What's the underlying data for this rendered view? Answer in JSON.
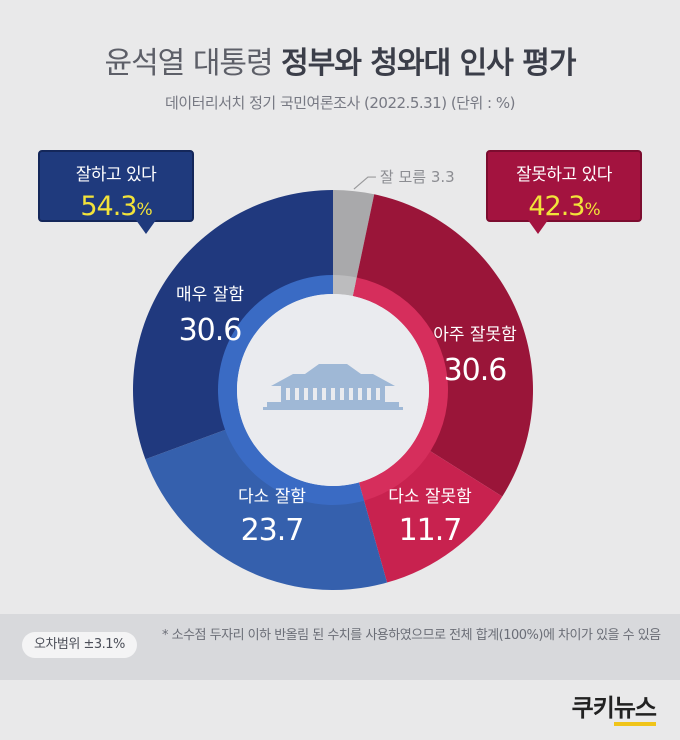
{
  "title": {
    "light": "윤석열 대통령 ",
    "bold": "정부와 청와대 인사 평가"
  },
  "subtitle": "데이터리서치 정기 국민여론조사 (2022.5.31)  (단위 : %)",
  "callouts": {
    "good": {
      "label": "잘하고 있다",
      "value": "54.3",
      "unit": "%"
    },
    "bad": {
      "label": "잘못하고 있다",
      "value": "42.3",
      "unit": "%"
    }
  },
  "footer": {
    "margin": "오차범위 ±3.1%",
    "note": "* 소수점 두자리 이하 반올림 된 수치를 사용하였으므로 전체 합계(100%)에 차이가 있을 수 있음"
  },
  "brand": {
    "part1": "쿠키",
    "part2": "뉴스"
  },
  "chart_data": {
    "type": "pie",
    "variant": "donut",
    "slices": [
      {
        "label": "잘 모름",
        "value": 3.3,
        "display": "3.3",
        "color": "#a9a9ab"
      },
      {
        "label": "아주 잘못함",
        "value": 30.6,
        "display": "30.6",
        "color": "#9a1539"
      },
      {
        "label": "다소 잘못함",
        "value": 11.7,
        "display": "11.7",
        "color": "#c8224f"
      },
      {
        "label": "다소 잘함",
        "value": 23.7,
        "display": "23.7",
        "color": "#3560ad"
      },
      {
        "label": "매우 잘함",
        "value": 30.6,
        "display": "30.6",
        "color": "#20397e"
      }
    ],
    "inner_ring": [
      {
        "group": "good",
        "value": 54.3,
        "color": "#3a6bc4"
      },
      {
        "group": "bad",
        "value": 42.3,
        "color": "#d62e5c"
      }
    ]
  }
}
